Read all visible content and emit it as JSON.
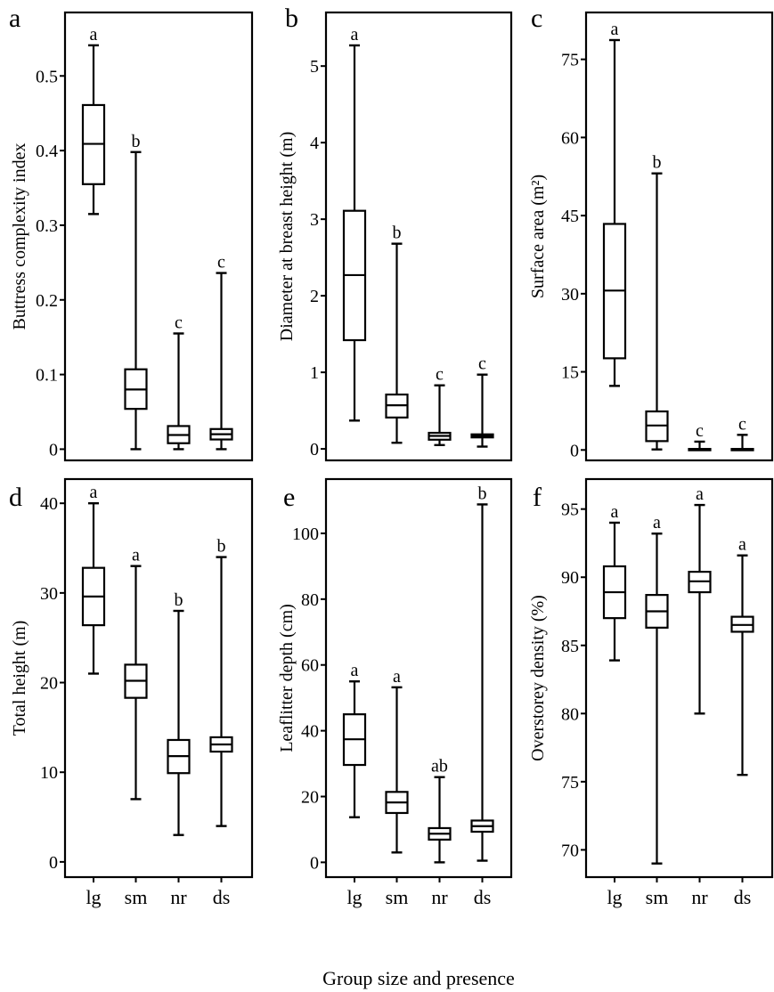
{
  "figure": {
    "xlabel": "Group size and presence",
    "categories": [
      "lg",
      "sm",
      "nr",
      "ds"
    ]
  },
  "chart_data": [
    {
      "type": "box",
      "panel": "a",
      "title": "",
      "ylabel": "Buttress complexity index",
      "xlabel": "",
      "categories": [
        "lg",
        "sm",
        "nr",
        "ds"
      ],
      "yticks": [
        0,
        0.1,
        0.2,
        0.3,
        0.4,
        0.5
      ],
      "ytick_labels": [
        "0",
        "0.1",
        "0.2",
        "0.3",
        "0.4",
        "0.5"
      ],
      "ylim": [
        -0.015,
        0.585
      ],
      "boxes": [
        {
          "cat": "lg",
          "min": 0.315,
          "q1": 0.355,
          "median": 0.409,
          "q3": 0.461,
          "max": 0.541,
          "letter": "a"
        },
        {
          "cat": "sm",
          "min": 0.0,
          "q1": 0.054,
          "median": 0.08,
          "q3": 0.107,
          "max": 0.398,
          "letter": "b"
        },
        {
          "cat": "nr",
          "min": 0.0,
          "q1": 0.008,
          "median": 0.019,
          "q3": 0.031,
          "max": 0.155,
          "letter": "c"
        },
        {
          "cat": "ds",
          "min": 0.0,
          "q1": 0.013,
          "median": 0.02,
          "q3": 0.027,
          "max": 0.236,
          "letter": "c"
        }
      ]
    },
    {
      "type": "box",
      "panel": "b",
      "title": "",
      "ylabel": "Diameter at breast height (m)",
      "xlabel": "",
      "categories": [
        "lg",
        "sm",
        "nr",
        "ds"
      ],
      "yticks": [
        0,
        1,
        2,
        3,
        4,
        5
      ],
      "ytick_labels": [
        "0",
        "1",
        "2",
        "3",
        "4",
        "5"
      ],
      "ylim": [
        -0.15,
        5.7
      ],
      "boxes": [
        {
          "cat": "lg",
          "min": 0.37,
          "q1": 1.42,
          "median": 2.27,
          "q3": 3.11,
          "max": 5.27,
          "letter": "a"
        },
        {
          "cat": "sm",
          "min": 0.08,
          "q1": 0.41,
          "median": 0.57,
          "q3": 0.71,
          "max": 2.68,
          "letter": "b"
        },
        {
          "cat": "nr",
          "min": 0.05,
          "q1": 0.12,
          "median": 0.17,
          "q3": 0.21,
          "max": 0.83,
          "letter": "c"
        },
        {
          "cat": "ds",
          "min": 0.03,
          "q1": 0.15,
          "median": 0.17,
          "q3": 0.19,
          "max": 0.97,
          "letter": "c"
        }
      ]
    },
    {
      "type": "box",
      "panel": "c",
      "title": "",
      "ylabel": "Surface area (m²)",
      "xlabel": "",
      "categories": [
        "lg",
        "sm",
        "nr",
        "ds"
      ],
      "yticks": [
        0,
        15,
        30,
        45,
        60,
        75
      ],
      "ytick_labels": [
        "0",
        "15",
        "30",
        "45",
        "60",
        "75"
      ],
      "ylim": [
        -2,
        84
      ],
      "boxes": [
        {
          "cat": "lg",
          "min": 12.3,
          "q1": 17.6,
          "median": 30.6,
          "q3": 43.4,
          "max": 78.7,
          "letter": "a"
        },
        {
          "cat": "sm",
          "min": 0.1,
          "q1": 1.7,
          "median": 4.7,
          "q3": 7.4,
          "max": 53.1,
          "letter": "b"
        },
        {
          "cat": "nr",
          "min": 0.0,
          "q1": 0.05,
          "median": 0.1,
          "q3": 0.2,
          "max": 1.6,
          "letter": "c"
        },
        {
          "cat": "ds",
          "min": 0.0,
          "q1": 0.05,
          "median": 0.1,
          "q3": 0.2,
          "max": 2.9,
          "letter": "c"
        }
      ]
    },
    {
      "type": "box",
      "panel": "d",
      "title": "",
      "ylabel": "Total height (m)",
      "xlabel": "",
      "categories": [
        "lg",
        "sm",
        "nr",
        "ds"
      ],
      "yticks": [
        0,
        10,
        20,
        30,
        40
      ],
      "ytick_labels": [
        "0",
        "10",
        "20",
        "30",
        "40"
      ],
      "ylim": [
        -1.7,
        42.7
      ],
      "boxes": [
        {
          "cat": "lg",
          "min": 21.0,
          "q1": 26.4,
          "median": 29.6,
          "q3": 32.8,
          "max": 40.0,
          "letter": "a"
        },
        {
          "cat": "sm",
          "min": 7.0,
          "q1": 18.3,
          "median": 20.2,
          "q3": 22.0,
          "max": 33.0,
          "letter": "a"
        },
        {
          "cat": "nr",
          "min": 3.0,
          "q1": 9.9,
          "median": 11.8,
          "q3": 13.6,
          "max": 28.0,
          "letter": "b"
        },
        {
          "cat": "ds",
          "min": 4.0,
          "q1": 12.3,
          "median": 13.1,
          "q3": 13.9,
          "max": 34.0,
          "letter": "b"
        }
      ]
    },
    {
      "type": "box",
      "panel": "e",
      "title": "",
      "ylabel": "Leaflitter depth (cm)",
      "xlabel": "Group size and presence",
      "categories": [
        "lg",
        "sm",
        "nr",
        "ds"
      ],
      "yticks": [
        0,
        20,
        40,
        60,
        80,
        100
      ],
      "ytick_labels": [
        "0",
        "20",
        "40",
        "60",
        "80",
        "100"
      ],
      "ylim": [
        -4.5,
        116.5
      ],
      "boxes": [
        {
          "cat": "lg",
          "min": 13.7,
          "q1": 29.6,
          "median": 37.4,
          "q3": 45.0,
          "max": 55.0,
          "letter": "a"
        },
        {
          "cat": "sm",
          "min": 3.0,
          "q1": 15.0,
          "median": 18.2,
          "q3": 21.4,
          "max": 53.2,
          "letter": "a"
        },
        {
          "cat": "nr",
          "min": 0.0,
          "q1": 6.9,
          "median": 8.7,
          "q3": 10.4,
          "max": 25.9,
          "letter": "ab"
        },
        {
          "cat": "ds",
          "min": 0.5,
          "q1": 9.3,
          "median": 11.0,
          "q3": 12.7,
          "max": 108.8,
          "letter": "b"
        }
      ]
    },
    {
      "type": "box",
      "panel": "f",
      "title": "",
      "ylabel": "Overstorey density (%)",
      "xlabel": "",
      "categories": [
        "lg",
        "sm",
        "nr",
        "ds"
      ],
      "yticks": [
        70,
        75,
        80,
        85,
        90,
        95
      ],
      "ytick_labels": [
        "70",
        "75",
        "80",
        "85",
        "90",
        "95"
      ],
      "ylim": [
        68.0,
        97.2
      ],
      "boxes": [
        {
          "cat": "lg",
          "min": 83.9,
          "q1": 87.0,
          "median": 88.9,
          "q3": 90.8,
          "max": 94.0,
          "letter": "a"
        },
        {
          "cat": "sm",
          "min": 69.0,
          "q1": 86.3,
          "median": 87.5,
          "q3": 88.7,
          "max": 93.2,
          "letter": "a"
        },
        {
          "cat": "nr",
          "min": 80.0,
          "q1": 88.9,
          "median": 89.7,
          "q3": 90.4,
          "max": 95.3,
          "letter": "a"
        },
        {
          "cat": "ds",
          "min": 75.5,
          "q1": 86.0,
          "median": 86.5,
          "q3": 87.1,
          "max": 91.6,
          "letter": "a"
        }
      ]
    }
  ]
}
